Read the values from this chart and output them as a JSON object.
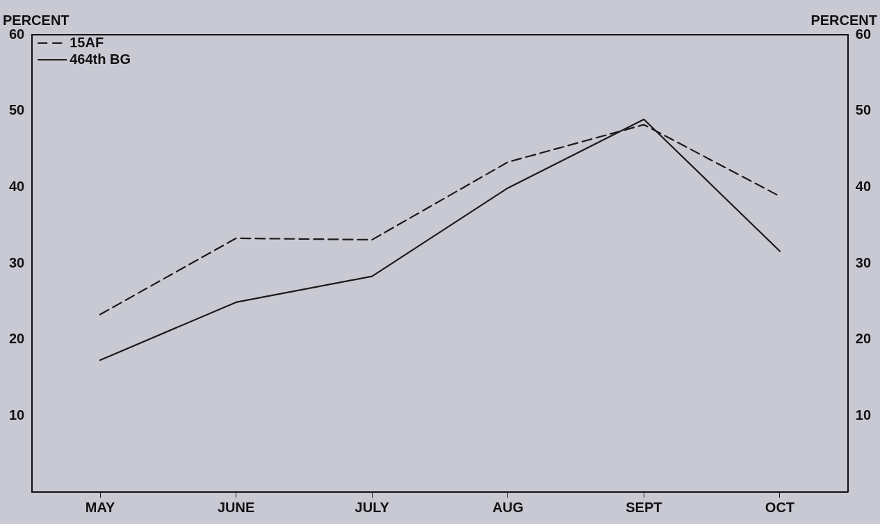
{
  "chart_data": {
    "type": "line",
    "ylabel": "PERCENT",
    "y2label": "PERCENT",
    "categories": [
      "MAY",
      "JUNE",
      "JULY",
      "AUG",
      "SEPT",
      "OCT"
    ],
    "series": [
      {
        "name": "15AF",
        "color": "#1a1a1a",
        "line_style": "dashed",
        "values": [
          23.3,
          33.3,
          33.1,
          43.3,
          48.2,
          38.8
        ]
      },
      {
        "name": "464th BG",
        "color": "#1a1a1a",
        "line_style": "solid",
        "values": [
          17.3,
          24.9,
          28.3,
          39.9,
          48.9,
          31.6
        ]
      }
    ],
    "ylim": [
      0,
      60
    ],
    "yticks": [
      10,
      20,
      30,
      40,
      50,
      60
    ],
    "y2lim": [
      0,
      60
    ],
    "y2ticks": [
      10,
      20,
      30,
      40,
      50,
      60
    ],
    "grid": false,
    "legend": "top left",
    "marker": "none"
  }
}
